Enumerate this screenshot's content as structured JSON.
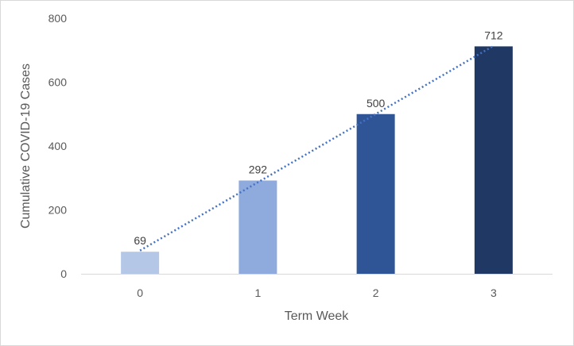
{
  "chart_data": {
    "type": "bar",
    "title": "",
    "xlabel": "Term Week",
    "ylabel": "Cumulative COVID-19 Cases",
    "categories": [
      "0",
      "1",
      "2",
      "3"
    ],
    "values": [
      69,
      292,
      500,
      712
    ],
    "data_labels": [
      "69",
      "292",
      "500",
      "712"
    ],
    "bar_colors": [
      "#b4c7e7",
      "#8faadc",
      "#2f5597",
      "#203864"
    ],
    "ylim": [
      0,
      800
    ],
    "yticks": [
      0,
      200,
      400,
      600,
      800
    ],
    "ytick_labels": [
      "0",
      "200",
      "400",
      "600",
      "800"
    ],
    "grid": false,
    "legend": "none",
    "trendline": {
      "type": "linear",
      "style": "dotted",
      "color": "#4472c4"
    },
    "axis_color": "#d9d9d9"
  }
}
